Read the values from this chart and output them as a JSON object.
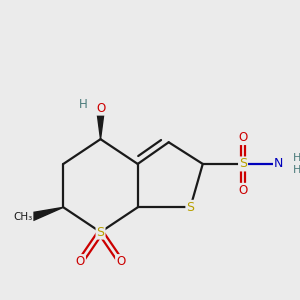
{
  "bg_color": "#ebebeb",
  "bond_color": "#1a1a1a",
  "S_color": "#b8a000",
  "O_color": "#cc0000",
  "N_color": "#0000bb",
  "H_color": "#4a7a7a",
  "lw": 1.6,
  "figsize": [
    3.0,
    3.0
  ],
  "dpi": 100,
  "xlim": [
    0.0,
    9.0
  ],
  "ylim": [
    0.5,
    9.0
  ]
}
